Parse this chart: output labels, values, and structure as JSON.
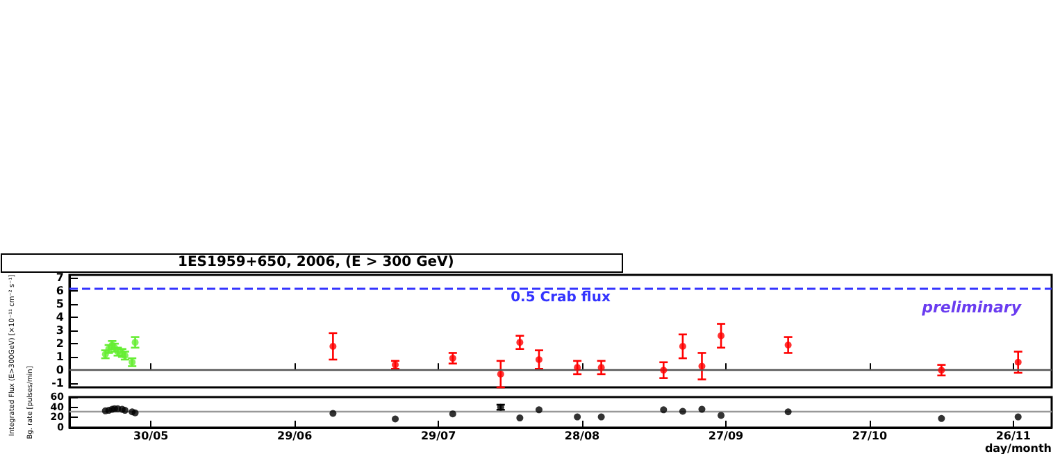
{
  "chart_data": [
    {
      "type": "scatter",
      "title": "1ES1959+650, 2006, (E > 300 GeV)",
      "ylabel": "Integrated Flux (E>300GeV) [×10⁻¹¹ cm⁻² s⁻¹]",
      "annotations": [
        "preliminary"
      ],
      "xlim": [
        "2006-05-13",
        "2006-12-04"
      ],
      "xticks": [
        {
          "value": "2006-05-30",
          "label": null
        },
        {
          "value": "2006-06-29",
          "label": null
        },
        {
          "value": "2006-07-29",
          "label": null
        },
        {
          "value": "2006-08-28",
          "label": null
        },
        {
          "value": "2006-09-27",
          "label": null
        },
        {
          "value": "2006-10-27",
          "label": null
        },
        {
          "value": "2006-11-26",
          "label": null
        }
      ],
      "ylim": [
        -1.3,
        7.2
      ],
      "yticks": [
        -1,
        0,
        1,
        2,
        3,
        4,
        5,
        6,
        7
      ],
      "tick_labels": "y",
      "grid": false,
      "marker": "circle",
      "ref_lines": [
        {
          "axis": "y",
          "value": 0,
          "color": "#555555",
          "line_style": "solid"
        },
        {
          "axis": "y",
          "value": 6.2,
          "label": "0.5 Crab flux",
          "color": "#3333ff",
          "line_style": "dashed"
        }
      ],
      "series": [
        {
          "color": "#66ee33",
          "x": [
            "2006-05-20T12:00",
            "2006-05-21T05:00",
            "2006-05-21T22:00",
            "2006-05-22T10:00",
            "2006-05-23T02:00",
            "2006-05-24T00:00",
            "2006-05-24T14:00",
            "2006-05-26T02:00",
            "2006-05-26T17:00"
          ],
          "values": [
            1.2,
            1.6,
            1.9,
            1.7,
            1.4,
            1.3,
            1.1,
            0.6,
            2.1
          ],
          "errors": [
            0.3,
            0.3,
            0.3,
            0.3,
            0.3,
            0.3,
            0.3,
            0.3,
            0.4
          ]
        },
        {
          "color": "#ff0000",
          "x": [
            "2006-07-07",
            "2006-07-20",
            "2006-08-01",
            "2006-08-11",
            "2006-08-15",
            "2006-08-19",
            "2006-08-27",
            "2006-09-01",
            "2006-09-14",
            "2006-09-18",
            "2006-09-22",
            "2006-09-26",
            "2006-10-10",
            "2006-11-11",
            "2006-11-27"
          ],
          "values": [
            1.8,
            0.4,
            0.9,
            -0.3,
            2.1,
            0.8,
            0.2,
            0.2,
            0.0,
            1.8,
            0.3,
            2.6,
            1.9,
            0.0,
            0.6
          ],
          "errors": [
            1.0,
            0.3,
            0.4,
            1.0,
            0.5,
            0.7,
            0.5,
            0.5,
            0.6,
            0.9,
            1.0,
            0.9,
            0.6,
            0.4,
            0.8
          ]
        }
      ]
    },
    {
      "type": "scatter",
      "ylabel": "Bg. rate [pulses/min]",
      "xlabel": "day/month",
      "xlim": [
        "2006-05-13",
        "2006-12-04"
      ],
      "xticks": [
        {
          "value": "2006-05-30",
          "label": "30/05"
        },
        {
          "value": "2006-06-29",
          "label": "29/06"
        },
        {
          "value": "2006-07-29",
          "label": "29/07"
        },
        {
          "value": "2006-08-28",
          "label": "28/08"
        },
        {
          "value": "2006-09-27",
          "label": "27/09"
        },
        {
          "value": "2006-10-27",
          "label": "27/10"
        },
        {
          "value": "2006-11-26",
          "label": "26/11"
        }
      ],
      "ylim": [
        0,
        60
      ],
      "yticks": [
        0,
        20,
        40,
        60
      ],
      "grid": false,
      "marker": "circle",
      "ref_lines": [
        {
          "axis": "y",
          "value": 31,
          "color": "#999999",
          "line_style": "solid"
        }
      ],
      "series": [
        {
          "color": "#000000",
          "x": [
            "2006-05-20T12:00",
            "2006-05-21T05:00",
            "2006-05-21T22:00",
            "2006-05-22T10:00",
            "2006-05-23T02:00",
            "2006-05-24T00:00",
            "2006-05-24T14:00",
            "2006-05-26T02:00",
            "2006-05-26T17:00",
            "2006-07-07",
            "2006-07-20",
            "2006-08-01",
            "2006-08-11",
            "2006-08-15",
            "2006-08-19",
            "2006-08-27",
            "2006-09-01",
            "2006-09-14",
            "2006-09-18",
            "2006-09-22",
            "2006-09-26",
            "2006-10-10",
            "2006-11-11",
            "2006-11-27"
          ],
          "values": [
            33,
            34,
            36,
            37,
            37,
            36,
            34,
            31,
            29,
            28,
            17,
            27,
            40,
            19,
            35,
            21,
            21,
            35,
            32,
            36,
            24,
            31,
            18,
            21
          ],
          "errors": [
            null,
            null,
            null,
            null,
            null,
            null,
            null,
            null,
            null,
            null,
            null,
            null,
            5,
            null,
            null,
            null,
            null,
            null,
            null,
            null,
            null,
            null,
            null,
            null
          ]
        }
      ]
    }
  ]
}
